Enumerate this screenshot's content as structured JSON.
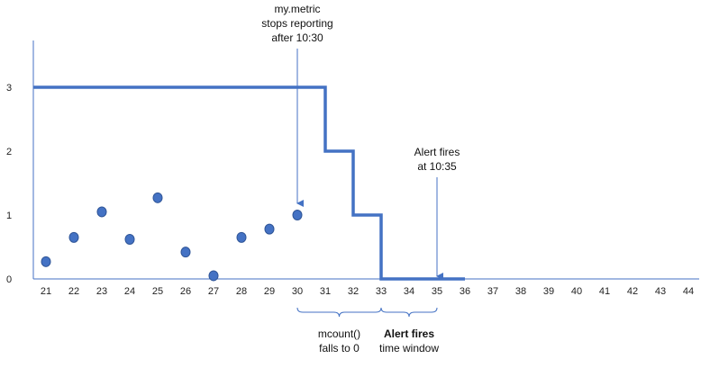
{
  "chart_data": {
    "type": "line",
    "title": "",
    "xlabel": "",
    "ylabel": "",
    "x_ticks": [
      "21",
      "22",
      "23",
      "24",
      "25",
      "26",
      "27",
      "28",
      "29",
      "30",
      "31",
      "32",
      "33",
      "34",
      "35",
      "36",
      "37",
      "38",
      "39",
      "40",
      "41",
      "42",
      "43",
      "44"
    ],
    "y_ticks": [
      "0",
      "1",
      "2",
      "3"
    ],
    "xlim": [
      20.5,
      44.8
    ],
    "ylim": [
      0,
      3.5
    ],
    "grid": false,
    "series": [
      {
        "kind": "step",
        "color": "#4472C4",
        "points": [
          [
            20.5,
            3
          ],
          [
            31,
            3
          ],
          [
            31,
            2
          ],
          [
            32,
            2
          ],
          [
            32,
            1
          ],
          [
            33,
            1
          ],
          [
            33,
            0
          ],
          [
            36,
            0
          ]
        ]
      },
      {
        "kind": "scatter",
        "color": "#4472C4",
        "points": [
          [
            21,
            0.27
          ],
          [
            22,
            0.65
          ],
          [
            23,
            1.05
          ],
          [
            24,
            0.62
          ],
          [
            25,
            1.27
          ],
          [
            26,
            0.42
          ],
          [
            27,
            0.05
          ],
          [
            28,
            0.65
          ],
          [
            29,
            0.78
          ],
          [
            30,
            1.0
          ]
        ]
      }
    ],
    "annotations": [
      {
        "id": "stops",
        "lines": [
          "my.metric",
          "stops reporting",
          "after 10:30"
        ],
        "arrow_x": 30
      },
      {
        "id": "fires",
        "lines": [
          "Alert fires",
          "at 10:35"
        ],
        "arrow_x": 35
      }
    ],
    "braces": [
      {
        "id": "mcount",
        "from": 30,
        "to": 33,
        "label_lines": [
          "mcount()",
          "falls to 0"
        ]
      },
      {
        "id": "window",
        "from": 33,
        "to": 35,
        "label_lines": [
          "Alert fires",
          "time window"
        ],
        "bold_first": true
      }
    ]
  }
}
